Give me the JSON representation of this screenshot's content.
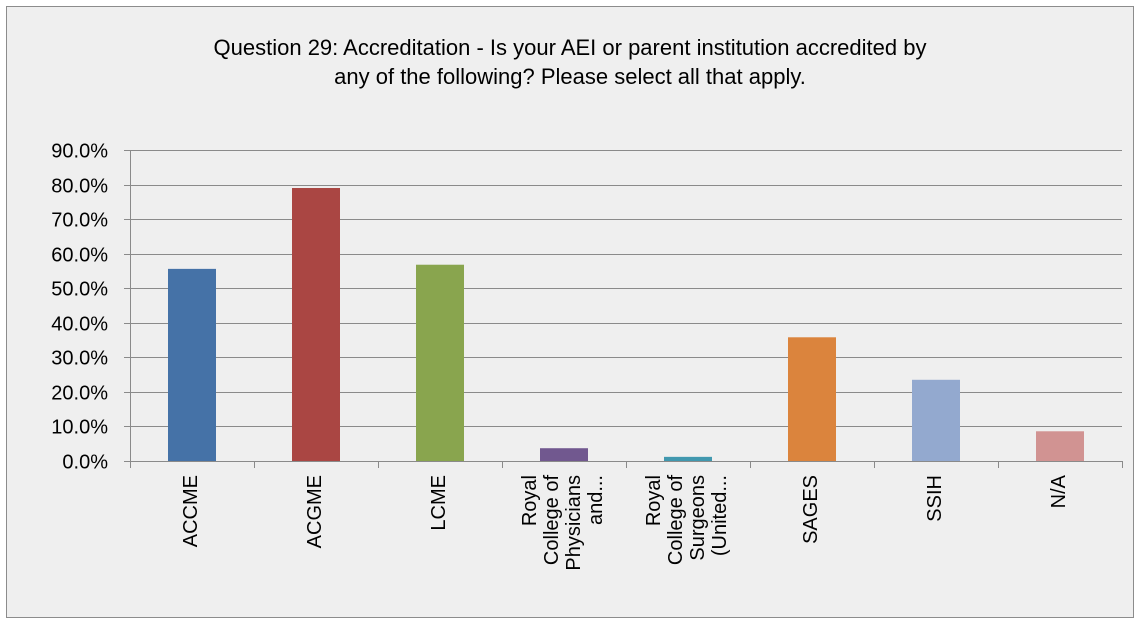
{
  "chart_data": {
    "type": "bar",
    "title": "Question 29: Accreditation - Is your AEI or parent institution accredited by any of the following? Please select all that apply.",
    "title_lines": [
      "Question 29: Accreditation - Is your AEI or parent institution accredited by",
      "any of the following? Please select all that apply."
    ],
    "categories": [
      "ACCME",
      "ACGME",
      "LCME",
      "Royal College of Physicians and...",
      "Royal College of Surgeons (United...",
      "SAGES",
      "SSIH",
      "N/A"
    ],
    "category_label_lines": [
      [
        "ACCME"
      ],
      [
        "ACGME"
      ],
      [
        "LCME"
      ],
      [
        "Royal",
        "College of",
        "Physicians",
        "and..."
      ],
      [
        "Royal",
        "College of",
        "Surgeons",
        "(United..."
      ],
      [
        "SAGES"
      ],
      [
        "SSIH"
      ],
      [
        "N/A"
      ]
    ],
    "values": [
      55.6,
      79.0,
      56.8,
      3.7,
      1.2,
      35.8,
      23.5,
      8.6
    ],
    "colors": [
      "#4572a7",
      "#aa4643",
      "#89a54e",
      "#71588f",
      "#4198af",
      "#db843d",
      "#93a9cf",
      "#d19392"
    ],
    "ylim": [
      0,
      90
    ],
    "y_ticks": [
      "0.0%",
      "10.0%",
      "20.0%",
      "30.0%",
      "40.0%",
      "50.0%",
      "60.0%",
      "70.0%",
      "80.0%",
      "90.0%"
    ],
    "xlabel": "",
    "ylabel": "",
    "grid": true,
    "legend": "none"
  }
}
